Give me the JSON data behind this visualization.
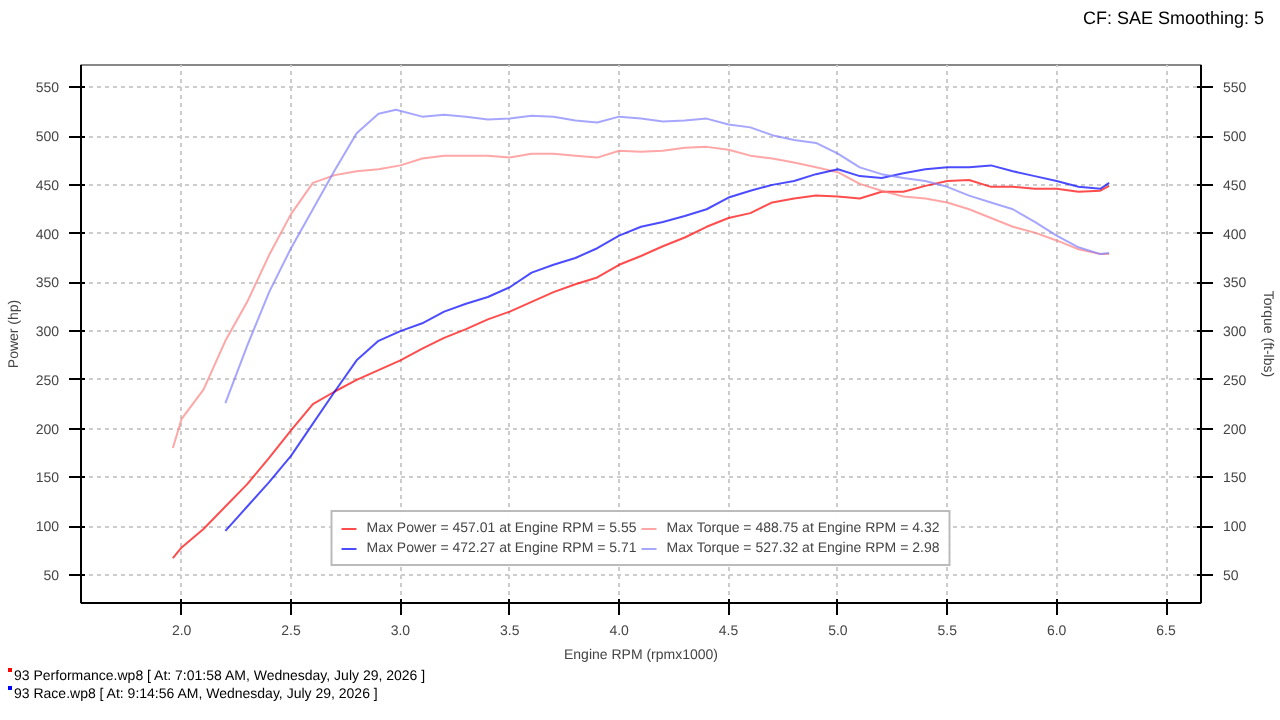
{
  "chart_data": {
    "type": "line",
    "xlabel": "Engine RPM (rpmx1000)",
    "ylabel": "Power (hp)",
    "y2label": "Torque (ft-lbs)",
    "annotations": [
      "CF: SAE Smoothing: 5",
      "93 Performance.wp8 [ At: 7:01:58 AM, Wednesday, July 29, 2026 ]",
      "93 Race.wp8 [ At: 9:14:56 AM, Wednesday, July 29, 2026 ]"
    ],
    "xlim": [
      1.54,
      6.66
    ],
    "ylim": [
      21,
      573
    ],
    "y2lim": [
      21,
      573
    ],
    "xticks": [
      {
        "value": 2,
        "label": "2.0"
      },
      2.5,
      {
        "value": 3,
        "label": "3.0"
      },
      3.5,
      {
        "value": 4,
        "label": "4.0"
      },
      4.5,
      {
        "value": 5,
        "label": "5.0"
      },
      5.5,
      {
        "value": 6,
        "label": "6.0"
      },
      6.5
    ],
    "yticks": [
      50,
      100,
      150,
      200,
      250,
      300,
      350,
      400,
      450,
      500,
      550
    ],
    "y2ticks": [
      50,
      100,
      150,
      200,
      250,
      300,
      350,
      400,
      450,
      500,
      550
    ],
    "grid": true,
    "legend": "bottom",
    "line_style": "solid",
    "series": [
      {
        "name": "Max Power = 457.01 at Engine RPM = 5.55",
        "color": "#ff0000",
        "x": [
          1.96,
          2.0,
          2.1,
          2.2,
          2.3,
          2.4,
          2.5,
          2.6,
          2.7,
          2.8,
          2.9,
          3.0,
          3.1,
          3.2,
          3.3,
          3.4,
          3.5,
          3.6,
          3.7,
          3.8,
          3.9,
          4.0,
          4.1,
          4.2,
          4.3,
          4.4,
          4.5,
          4.6,
          4.7,
          4.8,
          4.9,
          5.0,
          5.1,
          5.2,
          5.3,
          5.4,
          5.5,
          5.6,
          5.7,
          5.8,
          5.9,
          6.0,
          6.1,
          6.2,
          6.24
        ],
        "values": [
          67,
          78,
          97,
          120,
          143,
          170,
          198,
          225,
          238,
          250,
          260,
          270,
          282,
          293,
          302,
          312,
          320,
          330,
          340,
          348,
          355,
          368,
          377,
          387,
          396,
          407,
          416,
          421,
          432,
          436,
          439,
          438,
          436,
          443,
          443,
          449,
          454,
          455,
          448,
          448,
          446,
          446,
          443,
          444,
          449
        ]
      },
      {
        "name": "Max Torque = 488.75 at Engine RPM = 4.32",
        "color": "#ff8080",
        "axis": "y2",
        "x": [
          1.96,
          2.0,
          2.1,
          2.2,
          2.3,
          2.4,
          2.5,
          2.6,
          2.7,
          2.8,
          2.9,
          3.0,
          3.1,
          3.2,
          3.3,
          3.4,
          3.5,
          3.6,
          3.7,
          3.8,
          3.9,
          4.0,
          4.1,
          4.2,
          4.3,
          4.4,
          4.5,
          4.6,
          4.7,
          4.8,
          4.9,
          5.0,
          5.1,
          5.2,
          5.3,
          5.4,
          5.5,
          5.6,
          5.7,
          5.8,
          5.9,
          6.0,
          6.1,
          6.2,
          6.24
        ],
        "values": [
          180,
          210,
          240,
          290,
          330,
          378,
          420,
          452,
          460,
          464,
          466,
          470,
          477,
          480,
          480,
          480,
          478,
          482,
          482,
          480,
          478,
          485,
          484,
          485,
          488,
          489,
          486,
          480,
          477,
          473,
          468,
          463,
          451,
          444,
          438,
          436,
          432,
          425,
          416,
          407,
          401,
          393,
          384,
          379,
          379
        ]
      },
      {
        "name": "Max Power = 472.27 at Engine RPM = 5.71",
        "color": "#0000ff",
        "x": [
          2.2,
          2.3,
          2.4,
          2.5,
          2.6,
          2.7,
          2.8,
          2.9,
          3.0,
          3.1,
          3.2,
          3.3,
          3.4,
          3.5,
          3.6,
          3.7,
          3.8,
          3.9,
          4.0,
          4.1,
          4.2,
          4.3,
          4.4,
          4.5,
          4.6,
          4.7,
          4.8,
          4.9,
          5.0,
          5.1,
          5.2,
          5.3,
          5.4,
          5.5,
          5.6,
          5.7,
          5.8,
          5.9,
          6.0,
          6.1,
          6.2,
          6.24
        ],
        "values": [
          95,
          120,
          145,
          172,
          205,
          238,
          270,
          290,
          300,
          308,
          320,
          328,
          335,
          345,
          360,
          368,
          375,
          385,
          398,
          407,
          412,
          418,
          425,
          437,
          444,
          450,
          454,
          461,
          466,
          459,
          457,
          462,
          466,
          468,
          468,
          470,
          464,
          459,
          454,
          448,
          446,
          452
        ]
      },
      {
        "name": "Max Torque = 527.32 at Engine RPM = 2.98",
        "color": "#8080ff",
        "axis": "y2",
        "x": [
          2.2,
          2.3,
          2.4,
          2.5,
          2.6,
          2.7,
          2.8,
          2.9,
          2.98,
          3.1,
          3.2,
          3.3,
          3.4,
          3.5,
          3.6,
          3.7,
          3.8,
          3.9,
          4.0,
          4.1,
          4.2,
          4.3,
          4.4,
          4.5,
          4.6,
          4.7,
          4.8,
          4.9,
          5.0,
          5.1,
          5.2,
          5.3,
          5.4,
          5.5,
          5.6,
          5.7,
          5.8,
          5.9,
          6.0,
          6.1,
          6.2,
          6.24
        ],
        "values": [
          226,
          285,
          340,
          385,
          425,
          465,
          503,
          523,
          527,
          520,
          522,
          520,
          517,
          518,
          521,
          520,
          516,
          514,
          520,
          518,
          515,
          516,
          518,
          512,
          509,
          501,
          496,
          493,
          482,
          468,
          461,
          457,
          454,
          448,
          439,
          432,
          425,
          412,
          398,
          386,
          379,
          380
        ]
      }
    ]
  }
}
